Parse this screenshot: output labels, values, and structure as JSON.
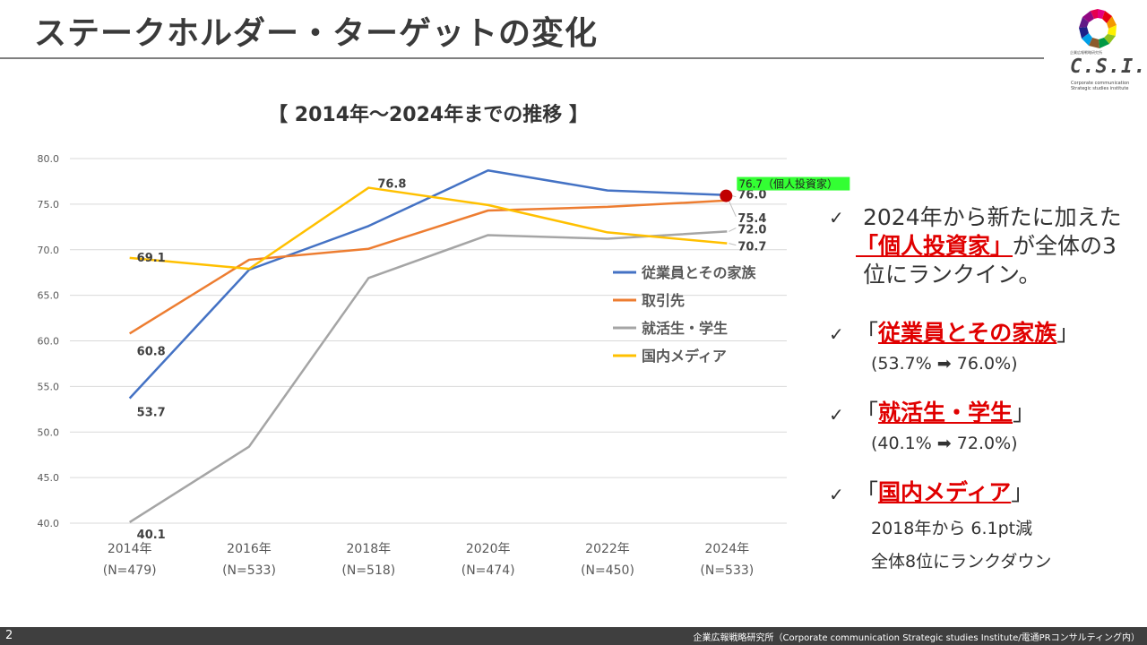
{
  "header": {
    "title": "ステークホルダー・ターゲットの変化"
  },
  "logo": {
    "small_text": "企業広報戦略研究所",
    "name": "C.S.I.",
    "sub1": "Corporate communication",
    "sub2": "Strategic studies institute"
  },
  "chart_data": {
    "type": "line",
    "title": "【 2014年～2024年までの推移 】",
    "categories": [
      "2014年",
      "2016年",
      "2018年",
      "2020年",
      "2022年",
      "2024年"
    ],
    "category_sublabels": [
      "(N=479)",
      "(N=533)",
      "(N=518)",
      "(N=474)",
      "(N=450)",
      "(N=533)"
    ],
    "ylim": [
      40,
      80
    ],
    "yticks": [
      "40.0",
      "45.0",
      "50.0",
      "55.0",
      "60.0",
      "65.0",
      "70.0",
      "75.0",
      "80.0"
    ],
    "grid": true,
    "legend_position": "right-inside",
    "series": [
      {
        "name": "従業員とその家族",
        "color": "#4472c4",
        "values": [
          53.7,
          67.8,
          72.6,
          78.7,
          76.5,
          76.0
        ],
        "labels": {
          "0": "53.7",
          "5": "76.0"
        }
      },
      {
        "name": "取引先",
        "color": "#ed7d31",
        "values": [
          60.8,
          68.9,
          70.1,
          74.3,
          74.7,
          75.4
        ],
        "labels": {
          "0": "60.8",
          "5": "75.4"
        }
      },
      {
        "name": "就活生・学生",
        "color": "#a5a5a5",
        "values": [
          40.1,
          48.4,
          66.9,
          71.6,
          71.2,
          72.0
        ],
        "labels": {
          "0": "40.1",
          "5": "72.0"
        }
      },
      {
        "name": "国内メディア",
        "color": "#ffc000",
        "values": [
          69.1,
          67.9,
          76.8,
          74.9,
          71.9,
          70.7
        ],
        "labels": {
          "0": "69.1",
          "2": "76.8",
          "5": "70.7"
        }
      }
    ],
    "highlight_point": {
      "label": "76.7（個人投資家）",
      "value": 76.7,
      "category_index": 5,
      "color": "#c00000",
      "label_bg": "#33ff33"
    }
  },
  "panel": {
    "p1": {
      "line1": "2024年から新たに加えた",
      "red": "「個人投資家」",
      "line2_rest": "が全体の3",
      "line3": "位にランクイン。"
    },
    "p2": {
      "open": "「",
      "red": "従業員とその家族",
      "close": "」",
      "sub": "(53.7% ➡ 76.0%)"
    },
    "p3": {
      "open": "「",
      "red": "就活生・学生",
      "close": "」",
      "sub": "(40.1% ➡ 72.0%)"
    },
    "p4": {
      "open": "「",
      "red": "国内メディア",
      "close": "」",
      "sub1": "2018年から 6.1pt減",
      "sub2": "全体8位にランクダウン"
    },
    "check": "✓"
  },
  "footer": {
    "page": "2",
    "text": "企業広報戦略研究所（Corporate communication Strategic studies Institute/電通PRコンサルティング内）"
  }
}
